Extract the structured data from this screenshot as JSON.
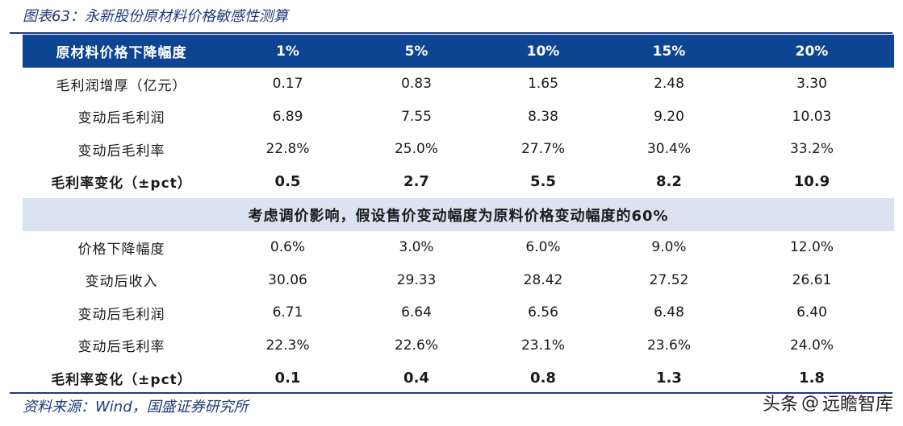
{
  "caption": "图表63：永新股份原材料价格敏感性测算",
  "header": {
    "label": "原材料价格下降幅度",
    "columns": [
      "1%",
      "5%",
      "10%",
      "15%",
      "20%"
    ]
  },
  "section1": [
    {
      "label": "毛利润增厚（亿元）",
      "values": [
        "0.17",
        "0.83",
        "1.65",
        "2.48",
        "3.30"
      ],
      "bold": false
    },
    {
      "label": "变动后毛利润",
      "values": [
        "6.89",
        "7.55",
        "8.38",
        "9.20",
        "10.03"
      ],
      "bold": false
    },
    {
      "label": "变动后毛利率",
      "values": [
        "22.8%",
        "25.0%",
        "27.7%",
        "30.4%",
        "33.2%"
      ],
      "bold": false
    },
    {
      "label": "毛利率变化（±pct）",
      "values": [
        "0.5",
        "2.7",
        "5.5",
        "8.2",
        "10.9"
      ],
      "bold": true
    }
  ],
  "band": "考虑调价影响，假设售价变动幅度为原料价格变动幅度的60%",
  "section2": [
    {
      "label": "价格下降幅度",
      "values": [
        "0.6%",
        "3.0%",
        "6.0%",
        "9.0%",
        "12.0%"
      ],
      "bold": false
    },
    {
      "label": "变动后收入",
      "values": [
        "30.06",
        "29.33",
        "28.42",
        "27.52",
        "26.61"
      ],
      "bold": false
    },
    {
      "label": "变动后毛利润",
      "values": [
        "6.71",
        "6.64",
        "6.56",
        "6.48",
        "6.40"
      ],
      "bold": false
    },
    {
      "label": "变动后毛利率",
      "values": [
        "22.3%",
        "22.6%",
        "23.1%",
        "23.6%",
        "24.0%"
      ],
      "bold": false
    },
    {
      "label": "毛利率变化（±pct）",
      "values": [
        "0.1",
        "0.4",
        "0.8",
        "1.3",
        "1.8"
      ],
      "bold": true
    }
  ],
  "source": "资料来源：Wind，国盛证券研究所",
  "watermark": {
    "prefix": "头条",
    "at": "@",
    "name": "远瞻智库"
  }
}
